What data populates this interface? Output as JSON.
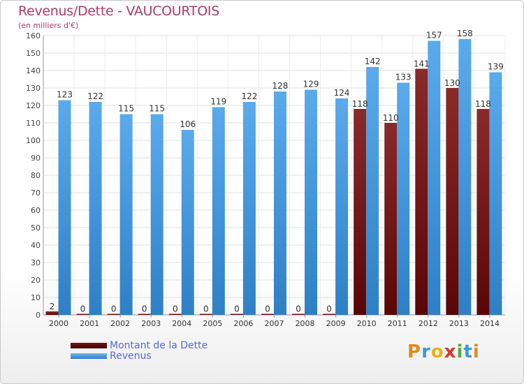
{
  "header": {
    "title": "Revenus/Dette - VAUCOURTOIS",
    "subtitle": "(en milliers d'€)"
  },
  "legend": {
    "items": [
      {
        "label": "Montant de la Dette",
        "color": "#6b0a0a"
      },
      {
        "label": "Revenus",
        "color": "#4a9de0"
      }
    ]
  },
  "logo": {
    "text": "Proxiti"
  },
  "colors": {
    "debt": "#7a1515",
    "debt_dark": "#5e0a0a",
    "revenue": "#55a6e8",
    "revenue_dark": "#2f7fc6",
    "title": "#b03a6e",
    "legend_text": "#5a67d8"
  },
  "chart_data": {
    "type": "bar",
    "title": "Revenus/Dette - VAUCOURTOIS",
    "subtitle": "(en milliers d'€)",
    "xlabel": "",
    "ylabel": "",
    "ylim": [
      0,
      160
    ],
    "yticks": [
      0,
      10,
      20,
      30,
      40,
      50,
      60,
      70,
      80,
      90,
      100,
      110,
      120,
      130,
      140,
      150,
      160
    ],
    "grid": true,
    "legend_position": "bottom-left",
    "categories": [
      "2000",
      "2001",
      "2002",
      "2003",
      "2004",
      "2005",
      "2006",
      "2007",
      "2008",
      "2009",
      "2010",
      "2011",
      "2012",
      "2013",
      "2014"
    ],
    "series": [
      {
        "name": "Montant de la Dette",
        "values": [
          2,
          0,
          0,
          0,
          0,
          0,
          0,
          0,
          0,
          0,
          118,
          110,
          141,
          130,
          118
        ]
      },
      {
        "name": "Revenus",
        "values": [
          123,
          122,
          115,
          115,
          106,
          119,
          122,
          128,
          129,
          124,
          142,
          133,
          157,
          158,
          139
        ]
      }
    ]
  }
}
